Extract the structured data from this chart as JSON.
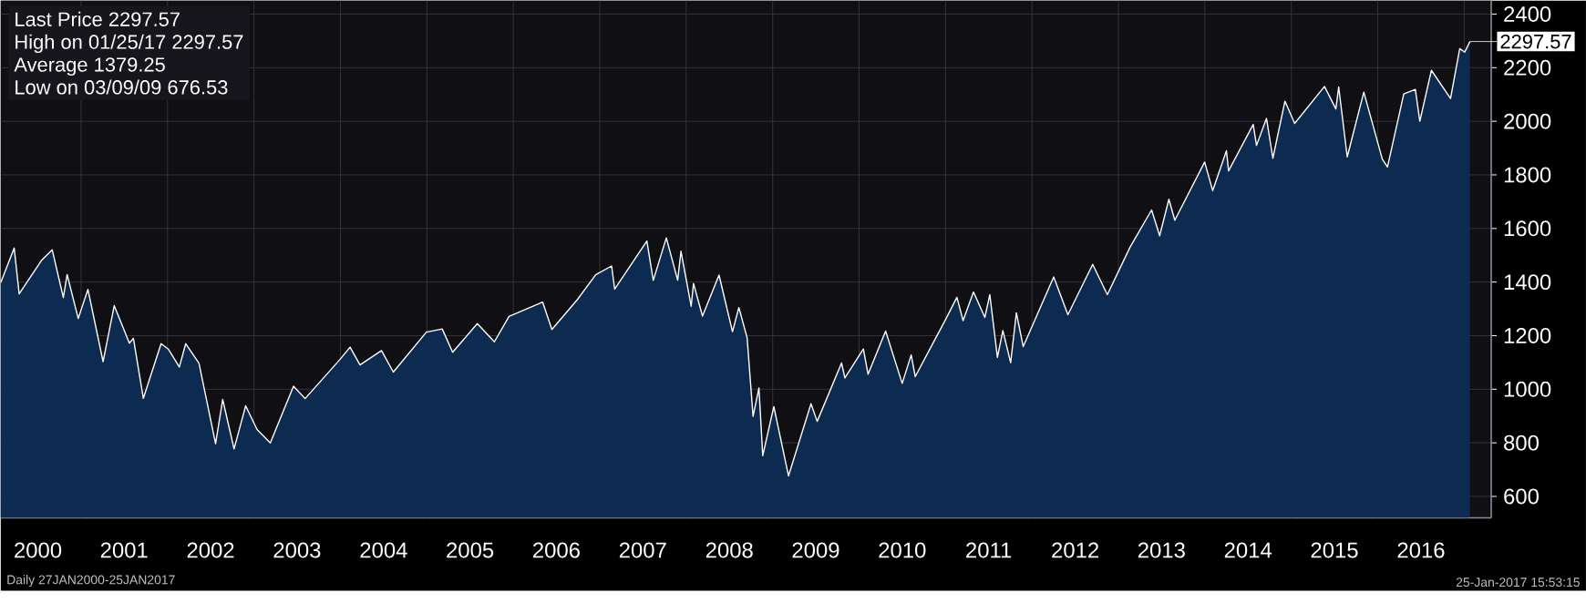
{
  "chart_data": {
    "type": "area",
    "x": [
      "2000-01-27",
      "2000-03-24",
      "2000-04-14",
      "2000-07-17",
      "2000-09-01",
      "2000-10-18",
      "2000-11-03",
      "2000-12-20",
      "2001-01-30",
      "2001-04-04",
      "2001-05-21",
      "2001-07-24",
      "2001-08-10",
      "2001-09-21",
      "2001-12-05",
      "2002-01-04",
      "2002-02-20",
      "2002-03-19",
      "2002-05-14",
      "2002-07-23",
      "2002-08-22",
      "2002-10-09",
      "2002-11-27",
      "2003-01-14",
      "2003-03-11",
      "2003-06-17",
      "2003-08-05",
      "2003-12-31",
      "2004-02-11",
      "2004-03-24",
      "2004-06-23",
      "2004-08-12",
      "2004-12-30",
      "2005-03-07",
      "2005-04-20",
      "2005-08-02",
      "2005-10-13",
      "2005-12-14",
      "2006-05-05",
      "2006-06-13",
      "2006-09-29",
      "2006-12-15",
      "2007-02-20",
      "2007-03-05",
      "2007-07-19",
      "2007-08-15",
      "2007-10-09",
      "2007-11-26",
      "2007-12-10",
      "2008-01-22",
      "2008-02-01",
      "2008-03-10",
      "2008-05-19",
      "2008-07-15",
      "2008-08-11",
      "2008-09-15",
      "2008-10-10",
      "2008-11-04",
      "2008-11-20",
      "2009-01-06",
      "2009-03-09",
      "2009-06-12",
      "2009-07-08",
      "2009-10-19",
      "2009-11-02",
      "2010-01-19",
      "2010-02-08",
      "2010-04-23",
      "2010-07-02",
      "2010-08-09",
      "2010-08-26",
      "2010-12-31",
      "2011-02-18",
      "2011-03-16",
      "2011-04-29",
      "2011-06-16",
      "2011-07-07",
      "2011-08-08",
      "2011-08-31",
      "2011-10-03",
      "2011-10-27",
      "2011-11-25",
      "2012-04-02",
      "2012-06-01",
      "2012-09-14",
      "2012-11-15",
      "2013-02-19",
      "2013-05-21",
      "2013-06-24",
      "2013-08-02",
      "2013-08-27",
      "2013-12-31",
      "2014-02-03",
      "2014-04-02",
      "2014-04-11",
      "2014-07-24",
      "2014-08-07",
      "2014-09-18",
      "2014-10-15",
      "2014-12-05",
      "2015-01-15",
      "2015-05-21",
      "2015-07-08",
      "2015-07-20",
      "2015-08-25",
      "2015-11-03",
      "2016-01-20",
      "2016-02-11",
      "2016-04-20",
      "2016-06-08",
      "2016-06-27",
      "2016-08-15",
      "2016-11-04",
      "2016-12-13",
      "2017-01-03",
      "2017-01-25"
    ],
    "series": [
      {
        "color": "#0d2b50",
        "values": [
          1398,
          1527,
          1356,
          1480,
          1520,
          1342,
          1428,
          1264,
          1373,
          1103,
          1312,
          1172,
          1190,
          966,
          1170,
          1150,
          1083,
          1170,
          1097,
          797,
          962,
          777,
          938,
          850,
          800,
          1011,
          965,
          1112,
          1157,
          1091,
          1144,
          1064,
          1213,
          1225,
          1138,
          1245,
          1177,
          1272,
          1325,
          1223,
          1335,
          1427,
          1460,
          1374,
          1553,
          1406,
          1565,
          1407,
          1515,
          1310,
          1395,
          1273,
          1426,
          1215,
          1305,
          1192,
          899,
          1005,
          752,
          935,
          676.53,
          946,
          880,
          1098,
          1042,
          1150,
          1056,
          1217,
          1022,
          1128,
          1047,
          1258,
          1343,
          1256,
          1363,
          1268,
          1353,
          1119,
          1219,
          1099,
          1285,
          1159,
          1419,
          1278,
          1466,
          1353,
          1530,
          1669,
          1573,
          1709,
          1631,
          1848,
          1741,
          1890,
          1815,
          1988,
          1910,
          2011,
          1862,
          2075,
          1992,
          2130,
          2046,
          2128,
          1867,
          2109,
          1859,
          1829,
          2102,
          2119,
          2000,
          2190,
          2085,
          2271,
          2258,
          2297.57
        ]
      }
    ],
    "xlim": [
      "2000-01-27",
      "2017-04-25"
    ],
    "xticks": [
      {
        "value": "2000-07-02",
        "label": "2000"
      },
      {
        "value": "2001-01-01",
        "label": null
      },
      {
        "value": "2001-07-02",
        "label": "2001"
      },
      {
        "value": "2002-01-01",
        "label": null
      },
      {
        "value": "2002-07-02",
        "label": "2002"
      },
      {
        "value": "2003-01-01",
        "label": null
      },
      {
        "value": "2003-07-02",
        "label": "2003"
      },
      {
        "value": "2004-01-01",
        "label": null
      },
      {
        "value": "2004-07-02",
        "label": "2004"
      },
      {
        "value": "2005-01-01",
        "label": null
      },
      {
        "value": "2005-07-02",
        "label": "2005"
      },
      {
        "value": "2006-01-01",
        "label": null
      },
      {
        "value": "2006-07-02",
        "label": "2006"
      },
      {
        "value": "2007-01-01",
        "label": null
      },
      {
        "value": "2007-07-02",
        "label": "2007"
      },
      {
        "value": "2008-01-01",
        "label": null
      },
      {
        "value": "2008-07-02",
        "label": "2008"
      },
      {
        "value": "2009-01-01",
        "label": null
      },
      {
        "value": "2009-07-02",
        "label": "2009"
      },
      {
        "value": "2010-01-01",
        "label": null
      },
      {
        "value": "2010-07-02",
        "label": "2010"
      },
      {
        "value": "2011-01-01",
        "label": null
      },
      {
        "value": "2011-07-02",
        "label": "2011"
      },
      {
        "value": "2012-01-01",
        "label": null
      },
      {
        "value": "2012-07-02",
        "label": "2012"
      },
      {
        "value": "2013-01-01",
        "label": null
      },
      {
        "value": "2013-07-02",
        "label": "2013"
      },
      {
        "value": "2014-01-01",
        "label": null
      },
      {
        "value": "2014-07-02",
        "label": "2014"
      },
      {
        "value": "2015-01-01",
        "label": null
      },
      {
        "value": "2015-07-02",
        "label": "2015"
      },
      {
        "value": "2016-01-01",
        "label": null
      },
      {
        "value": "2016-07-02",
        "label": "2016"
      },
      {
        "value": "2017-01-01",
        "label": null
      }
    ],
    "ylim": [
      520,
      2450
    ],
    "yticks": [
      600,
      800,
      1000,
      1200,
      1400,
      1600,
      1800,
      2000,
      2200,
      2400
    ],
    "grid": true,
    "annotations": [
      "Last Price 2297.57",
      "High on 01/25/17 2297.57",
      "Average 1379.25",
      "Low on 03/09/09 676.53",
      "Daily 27JAN2000-25JAN2017",
      "25-Jan-2017 15:53:15",
      {
        "text": "2297.57",
        "x": "2017-01-25",
        "y": 2297.57
      }
    ]
  }
}
